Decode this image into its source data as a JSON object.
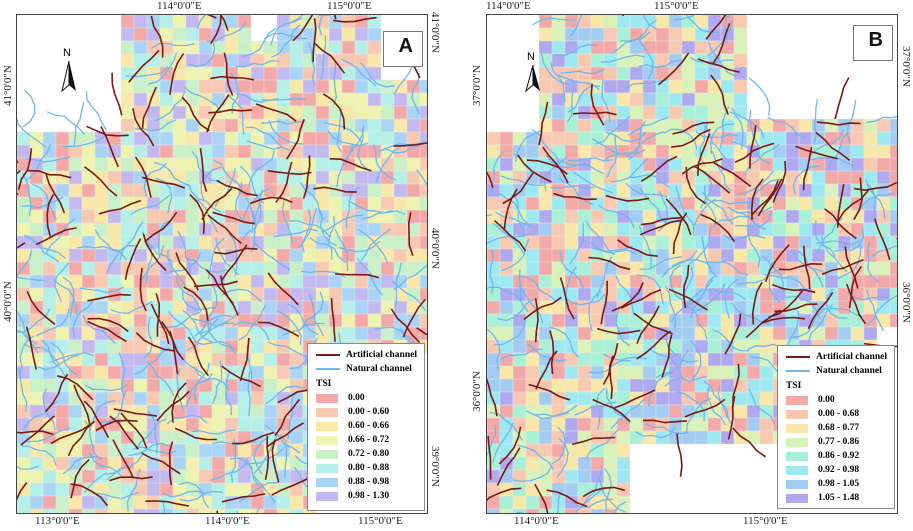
{
  "panels": [
    {
      "id": "A",
      "label": "A",
      "north_label": "N",
      "top_ticks": [
        "114°0'0\"E",
        "115°0'0\"E"
      ],
      "bottom_ticks": [
        "113°0'0\"E",
        "114°0'0\"E",
        "115°0'0\"E"
      ],
      "left_ticks": [
        "41°0'0\"N",
        "40°0'0\"N"
      ],
      "right_ticks": [
        "41°0'0\"N",
        "40°0'0\"N",
        "39°0'0\"N"
      ],
      "legend": {
        "artificial": "Artificial channel",
        "natural": "Natural channel",
        "title": "TSI",
        "classes": [
          {
            "label": "0.00",
            "color": "#f4a9a9"
          },
          {
            "label": "0.00 - 0.60",
            "color": "#f8c8b0"
          },
          {
            "label": "0.60 - 0.66",
            "color": "#f9e8a8"
          },
          {
            "label": "0.66 - 0.72",
            "color": "#eef3b0"
          },
          {
            "label": "0.72 - 0.80",
            "color": "#c9f0c6"
          },
          {
            "label": "0.80 - 0.88",
            "color": "#b4efe8"
          },
          {
            "label": "0.88 - 0.98",
            "color": "#a9d4f5"
          },
          {
            "label": "0.98 - 1.30",
            "color": "#c3b8f0"
          }
        ]
      }
    },
    {
      "id": "B",
      "label": "B",
      "north_label": "N",
      "top_ticks": [
        "114°0'0\"E",
        "115°0'0\"E"
      ],
      "bottom_ticks": [
        "114°0'0\"E",
        "115°0'0\"E"
      ],
      "left_ticks": [
        "37°0'0\"N",
        "36°0'0\"N"
      ],
      "right_ticks": [
        "37°0'0\"N",
        "36°0'0\"N"
      ],
      "legend": {
        "artificial": "Artificial channel",
        "natural": "Natural channel",
        "title": "TSI",
        "classes": [
          {
            "label": "0.00",
            "color": "#f4a9a9"
          },
          {
            "label": "0.00 - 0.68",
            "color": "#f8c8b0"
          },
          {
            "label": "0.68 - 0.77",
            "color": "#f9e8a8"
          },
          {
            "label": "0.77 - 0.86",
            "color": "#d9f2b8"
          },
          {
            "label": "0.86 - 0.92",
            "color": "#a8f0d6"
          },
          {
            "label": "0.92 - 0.98",
            "color": "#9de9f2"
          },
          {
            "label": "0.98 - 1.05",
            "color": "#a3ccf2"
          },
          {
            "label": "1.05 - 1.48",
            "color": "#b0a9f0"
          }
        ]
      }
    }
  ],
  "colors": {
    "artificial": "#7a1a12",
    "natural": "#6fb7ee",
    "border": "#444444"
  }
}
